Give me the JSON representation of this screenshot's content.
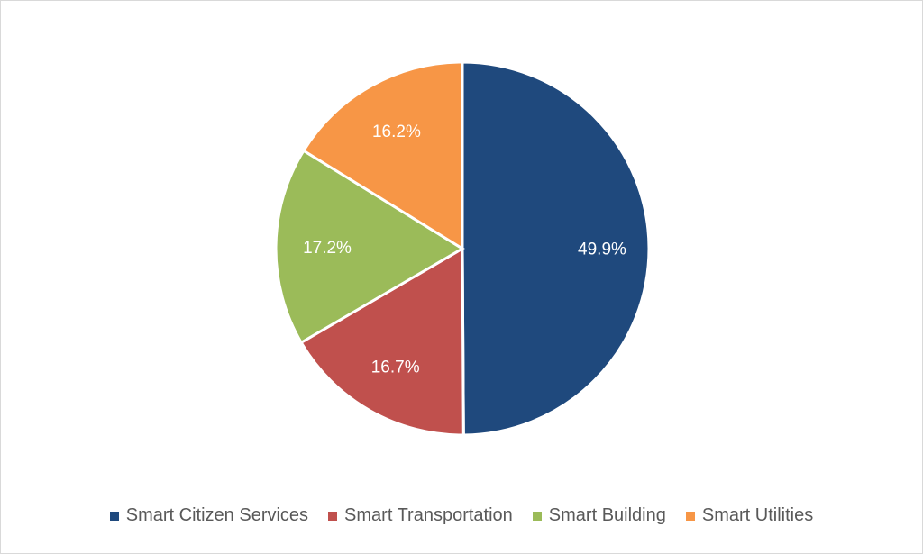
{
  "chart_data": {
    "type": "pie",
    "categories": [
      "Smart Citizen Services",
      "Smart Transportation",
      "Smart Building",
      "Smart Utilities"
    ],
    "values": [
      49.9,
      16.7,
      17.2,
      16.2
    ],
    "labels": [
      "49.9%",
      "16.7%",
      "17.2%",
      "16.2%"
    ],
    "colors": [
      "#1F497D",
      "#C0504D",
      "#9BBB59",
      "#F79646"
    ],
    "start_angle": "top",
    "direction": "clockwise",
    "legend_position": "bottom"
  }
}
